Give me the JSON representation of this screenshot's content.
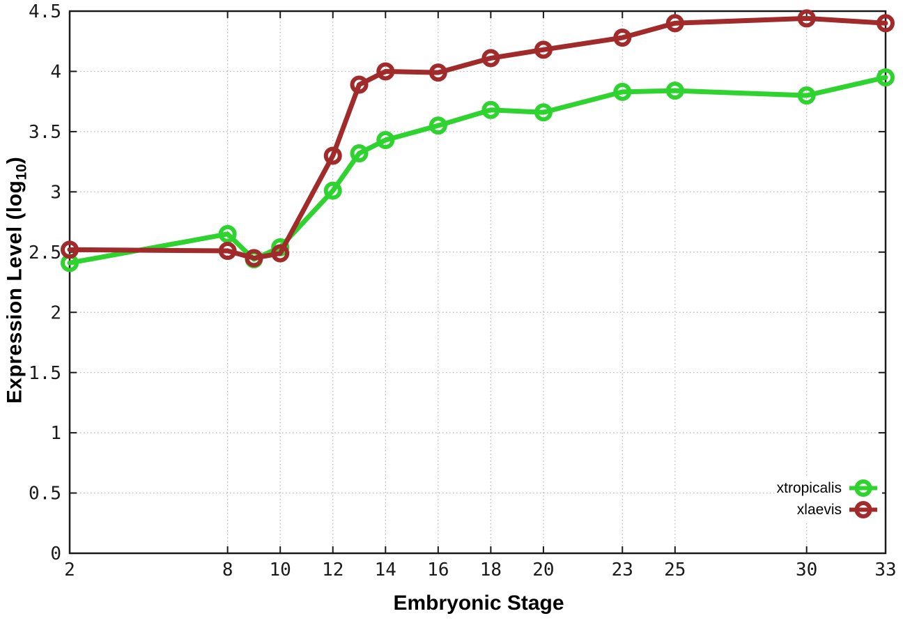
{
  "chart_data": {
    "type": "line",
    "title": "",
    "xlabel": "Embryonic Stage",
    "ylabel": "Expression Level (log10)",
    "ylabel_parts": {
      "prefix": "Expression Level (log",
      "sub": "10",
      "suffix": ")"
    },
    "xlim": [
      2,
      33
    ],
    "ylim": [
      0,
      4.5
    ],
    "grid": true,
    "legend_position": "bottom-right",
    "x": [
      2,
      8,
      9,
      10,
      12,
      13,
      14,
      16,
      18,
      20,
      23,
      25,
      30,
      33
    ],
    "xticks": [
      2,
      8,
      10,
      12,
      14,
      16,
      18,
      20,
      23,
      25,
      30,
      33
    ],
    "xtick_labels": [
      "2",
      "8",
      "10",
      "12",
      "14",
      "16",
      "18",
      "20",
      "23",
      "25",
      "30",
      "33"
    ],
    "yticks": [
      0,
      0.5,
      1,
      1.5,
      2,
      2.5,
      3,
      3.5,
      4,
      4.5
    ],
    "ytick_labels": [
      "0",
      "0.5",
      "1",
      "1.5",
      "2",
      "2.5",
      "3",
      "3.5",
      "4",
      "4.5"
    ],
    "series": [
      {
        "name": "xtropicalis",
        "color": "#2fd32f",
        "values": [
          2.41,
          2.65,
          2.44,
          2.54,
          3.01,
          3.32,
          3.43,
          3.55,
          3.68,
          3.66,
          3.83,
          3.84,
          3.8,
          3.95
        ]
      },
      {
        "name": "xlaevis",
        "color": "#a12a2a",
        "values": [
          2.52,
          2.51,
          2.45,
          2.49,
          3.3,
          3.89,
          4.0,
          3.99,
          4.11,
          4.18,
          4.28,
          4.4,
          4.44,
          4.4
        ]
      }
    ]
  },
  "styles": {
    "background": "#ffffff",
    "border_color": "#1a1a1a",
    "grid_color": "#b3b3b3",
    "tick_text_color": "#1a1a1a",
    "title_text_color": "#000000"
  }
}
